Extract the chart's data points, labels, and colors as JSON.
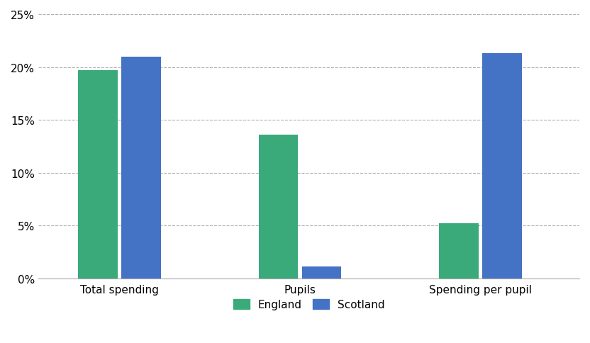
{
  "categories": [
    "Total spending",
    "Pupils",
    "Spending per pupil"
  ],
  "england_values": [
    0.197,
    0.136,
    0.052
  ],
  "scotland_values": [
    0.21,
    0.011,
    0.213
  ],
  "england_color": "#3aaa7a",
  "scotland_color": "#4472c4",
  "ylim": [
    0,
    0.25
  ],
  "yticks": [
    0,
    0.05,
    0.1,
    0.15,
    0.2,
    0.25
  ],
  "bar_width": 0.22,
  "group_positions": [
    1.0,
    2.0,
    3.0
  ],
  "legend_labels": [
    "England",
    "Scotland"
  ],
  "background_color": "#ffffff",
  "grid_color": "#b0b0b0",
  "grid_linewidth": 0.8,
  "axis_color": "#aaaaaa",
  "tick_fontsize": 11,
  "legend_fontsize": 11,
  "xlim_left": 0.55,
  "xlim_right": 3.55
}
